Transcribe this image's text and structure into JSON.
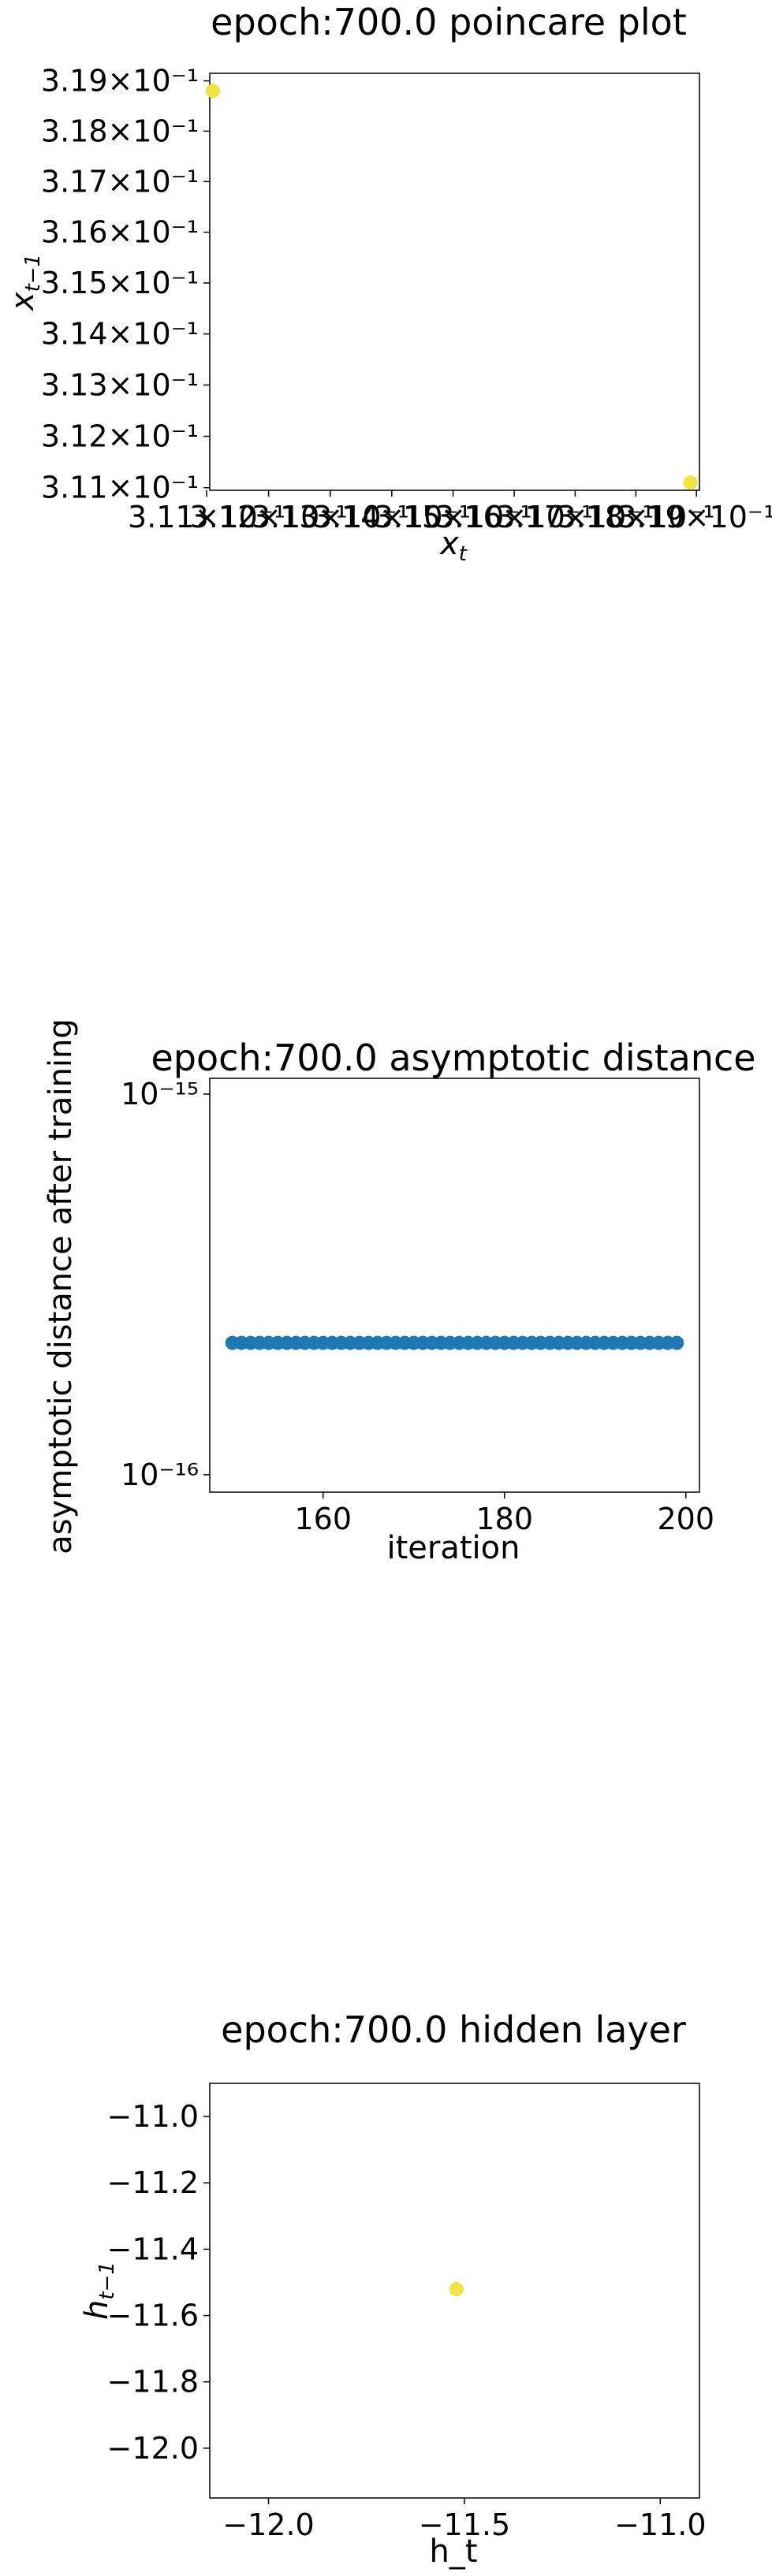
{
  "chart_data": [
    {
      "type": "scatter",
      "title": "epoch:700.0 poincare plot",
      "xlabel": "x_t",
      "ylabel": "x_{t-1}",
      "xscale": "log",
      "yscale": "log",
      "xlim": [
        0.31105,
        0.31905
      ],
      "ylim": [
        0.31095,
        0.31915
      ],
      "x_tick_labels": [
        "3.11×10⁻¹",
        "3.12×10⁻¹",
        "3.13×10⁻¹",
        "3.14×10⁻¹",
        "3.15×10⁻¹",
        "3.16×10⁻¹",
        "3.17×10⁻¹",
        "3.18×10⁻¹",
        "3.19×10⁻¹"
      ],
      "x_ticks": [
        0.311,
        0.312,
        0.313,
        0.314,
        0.315,
        0.316,
        0.317,
        0.318,
        0.319
      ],
      "y_tick_labels": [
        "3.19×10⁻¹",
        "3.18×10⁻¹",
        "3.17×10⁻¹",
        "3.16×10⁻¹",
        "3.15×10⁻¹",
        "3.14×10⁻¹",
        "3.13×10⁻¹",
        "3.12×10⁻¹",
        "3.11×10⁻¹"
      ],
      "y_ticks": [
        0.319,
        0.318,
        0.317,
        0.316,
        0.315,
        0.314,
        0.313,
        0.312,
        0.311
      ],
      "points": [
        {
          "x": 0.3111,
          "y": 0.3188
        },
        {
          "x": 0.3189,
          "y": 0.3111
        }
      ],
      "color": "#f0e442"
    },
    {
      "type": "scatter",
      "title": "epoch:700.0 asymptotic distance",
      "xlabel": "iteration",
      "ylabel": "asymptotic distance after training",
      "yscale": "log",
      "xlim": [
        147.5,
        201.5
      ],
      "ylim": [
        9e-17,
        1.1e-15
      ],
      "x_ticks": [
        160,
        180,
        200
      ],
      "x_tick_labels": [
        "160",
        "180",
        "200"
      ],
      "y_ticks": [
        1e-15,
        1e-16
      ],
      "y_tick_labels": [
        "10⁻¹⁵",
        "10⁻¹⁶"
      ],
      "x_start": 150,
      "x_end": 199,
      "y_value": 2.22e-16,
      "color": "#1f77b4"
    },
    {
      "type": "scatter",
      "title": "epoch:700.0 hidden layer",
      "xlabel": "h_t",
      "ylabel": "h_{t-1}",
      "xlim": [
        -12.15,
        -10.9
      ],
      "ylim": [
        -12.15,
        -10.9
      ],
      "x_ticks": [
        -12.0,
        -11.5,
        -11.0
      ],
      "x_tick_labels": [
        "−12.0",
        "−11.5",
        "−11.0"
      ],
      "y_ticks": [
        -11.0,
        -11.2,
        -11.4,
        -11.6,
        -11.8,
        -12.0
      ],
      "y_tick_labels": [
        "−11.0",
        "−11.2",
        "−11.4",
        "−11.6",
        "−11.8",
        "−12.0"
      ],
      "points": [
        {
          "x": -11.52,
          "y": -11.52
        }
      ],
      "color": "#f0e442"
    }
  ]
}
